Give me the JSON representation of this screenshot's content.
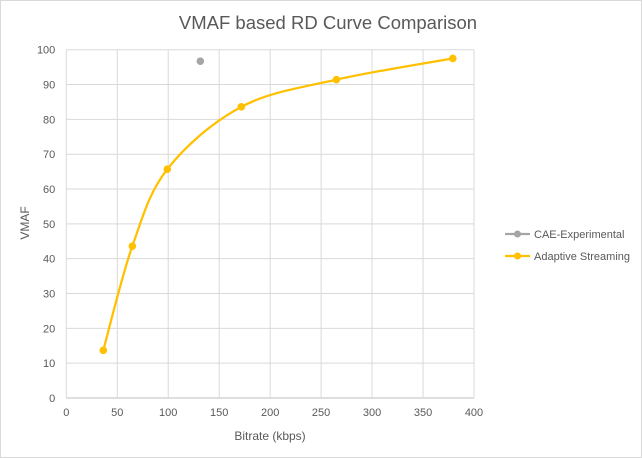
{
  "chart_data": {
    "type": "scatter",
    "title": "VMAF based RD Curve Comparison",
    "xlabel": "Bitrate (kbps)",
    "ylabel": "VMAF",
    "xlim": [
      0,
      400
    ],
    "ylim": [
      0,
      100
    ],
    "xticks": [
      0,
      50,
      100,
      150,
      200,
      250,
      300,
      350,
      400
    ],
    "yticks": [
      0,
      10,
      20,
      30,
      40,
      50,
      60,
      70,
      80,
      90,
      100
    ],
    "grid": true,
    "legend_position": "right",
    "series": [
      {
        "name": "CAE-Experimental",
        "color": "#a5a5a5",
        "line": false,
        "x": [
          131.5
        ],
        "y": [
          96.7
        ]
      },
      {
        "name": "Adaptive Streaming",
        "color": "#ffc000",
        "line": "smooth",
        "x": [
          36.3,
          64.8,
          99.1,
          171.7,
          265.0,
          379.2
        ],
        "y": [
          13.7,
          43.6,
          65.7,
          83.6,
          91.4,
          97.5
        ]
      }
    ]
  }
}
